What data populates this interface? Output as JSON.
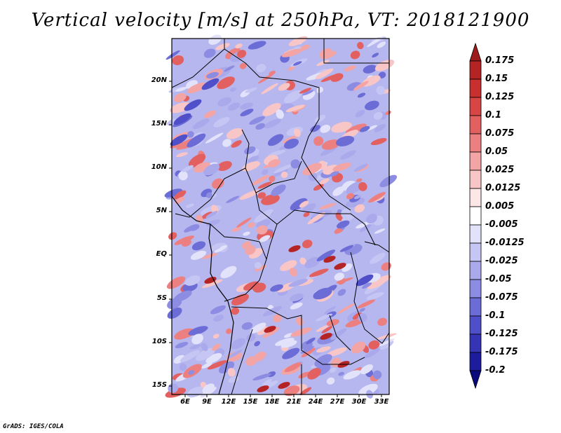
{
  "title": "Vertical velocity [m/s] at 250hPa, VT: 2018121900",
  "map": {
    "lat_labels": [
      "20N",
      "15N",
      "10N",
      "5N",
      "EQ",
      "5S",
      "10S",
      "15S"
    ],
    "lon_labels": [
      "6E",
      "9E",
      "12E",
      "15E",
      "18E",
      "21E",
      "24E",
      "27E",
      "30E",
      "33E"
    ]
  },
  "colorbar": {
    "labels": [
      "0.175",
      "0.15",
      "0.125",
      "0.1",
      "0.075",
      "0.05",
      "0.025",
      "0.0125",
      "0.005",
      "-0.005",
      "-0.0125",
      "-0.025",
      "-0.05",
      "-0.075",
      "-0.1",
      "-0.125",
      "-0.175",
      "-0.2"
    ],
    "colors": [
      "#9e1b1b",
      "#b52424",
      "#c83030",
      "#d84545",
      "#e26060",
      "#ec8080",
      "#f3a5a5",
      "#f8c6c6",
      "#fde6e6",
      "#ffffff",
      "#e2e2fa",
      "#c6c6f4",
      "#a9a9ec",
      "#8c8ce3",
      "#6c6cd7",
      "#4f4fc9",
      "#3434b5",
      "#1c1c9c",
      "#0a0a7c"
    ]
  },
  "credit": "GrADS: IGES/COLA"
}
